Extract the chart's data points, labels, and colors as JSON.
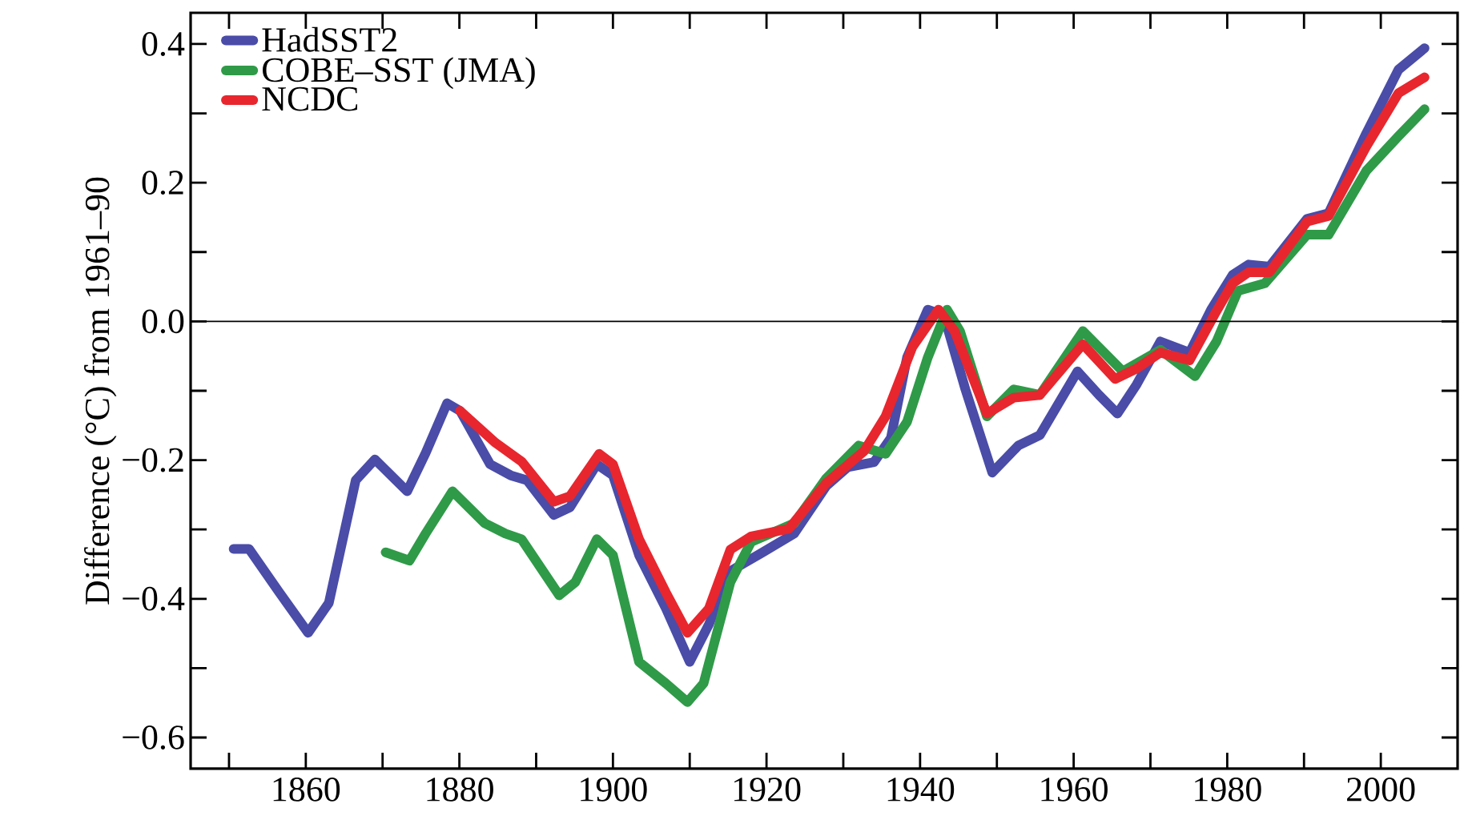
{
  "chart_data": {
    "type": "line",
    "ylabel": "Difference (°C) from 1961–90",
    "xlim": [
      1845,
      2010
    ],
    "ylim": [
      -0.645,
      0.445
    ],
    "xticks": [
      {
        "value": 1850,
        "label": null
      },
      1860,
      {
        "value": 1870,
        "label": null
      },
      1880,
      {
        "value": 1890,
        "label": null
      },
      1900,
      {
        "value": 1910,
        "label": null
      },
      1920,
      {
        "value": 1930,
        "label": null
      },
      1940,
      {
        "value": 1950,
        "label": null
      },
      1960,
      {
        "value": 1970,
        "label": null
      },
      1980,
      {
        "value": 1990,
        "label": null
      },
      2000
    ],
    "yticks": [
      {
        "value": -0.6,
        "label": "−0.6"
      },
      {
        "value": -0.5,
        "label": null
      },
      {
        "value": -0.4,
        "label": "−0.4"
      },
      {
        "value": -0.3,
        "label": null
      },
      {
        "value": -0.2,
        "label": "−0.2"
      },
      {
        "value": -0.1,
        "label": null
      },
      {
        "value": 0,
        "label": "0.0"
      },
      {
        "value": 0.1,
        "label": null
      },
      0.2,
      {
        "value": 0.3,
        "label": null
      },
      0.4
    ],
    "ref_lines": [
      {
        "axis": "y",
        "value": 0,
        "color": "#000000"
      }
    ],
    "legend": "top left",
    "grid": false,
    "marker": "none",
    "line_style": "solid",
    "series": [
      {
        "name": "HadSST2",
        "color": "#4a4ca8",
        "x": [
          1850.6,
          1852.6,
          1856.5,
          1860.3,
          1863,
          1866.5,
          1869,
          1873.2,
          1875.6,
          1878.4,
          1880.1,
          1884,
          1886.7,
          1888.8,
          1892.3,
          1894.4,
          1897.9,
          1900,
          1903.4,
          1906.9,
          1910,
          1912.5,
          1915.3,
          1919.5,
          1923.6,
          1927.8,
          1930.6,
          1934,
          1936.2,
          1938.3,
          1941,
          1943.1,
          1945.9,
          1949.4,
          1952.8,
          1955.6,
          1960.5,
          1963.3,
          1965.7,
          1968.2,
          1971.3,
          1975.1,
          1977.9,
          1980.7,
          1982.8,
          1985.5,
          1990.4,
          1993.2,
          1998.1,
          2002.3,
          2005.7
        ],
        "values": [
          -0.328,
          -0.328,
          -0.39,
          -0.449,
          -0.406,
          -0.229,
          -0.199,
          -0.245,
          -0.19,
          -0.118,
          -0.129,
          -0.206,
          -0.222,
          -0.229,
          -0.279,
          -0.268,
          -0.206,
          -0.222,
          -0.337,
          -0.414,
          -0.491,
          -0.437,
          -0.36,
          -0.333,
          -0.306,
          -0.237,
          -0.21,
          -0.203,
          -0.168,
          -0.052,
          0.017,
          0.009,
          -0.098,
          -0.218,
          -0.179,
          -0.164,
          -0.072,
          -0.106,
          -0.133,
          -0.091,
          -0.029,
          -0.045,
          0.017,
          0.067,
          0.082,
          0.079,
          0.148,
          0.156,
          0.271,
          0.363,
          0.394
        ]
      },
      {
        "name": "COBE–SST (JMA)",
        "color": "#2f9a48",
        "x": [
          1870.4,
          1873.5,
          1875.6,
          1879.1,
          1883.3,
          1886,
          1888.1,
          1893,
          1895.1,
          1897.9,
          1900,
          1903.4,
          1906.9,
          1909.7,
          1911.8,
          1915.3,
          1918,
          1923.6,
          1927.8,
          1932,
          1935.5,
          1938.3,
          1941,
          1943.5,
          1945.2,
          1948.7,
          1952.2,
          1955.6,
          1961.2,
          1966.4,
          1971.3,
          1975.8,
          1978.6,
          1981.4,
          1984.9,
          1990.4,
          1993.2,
          1998.1,
          2002.3,
          2005.7
        ],
        "values": [
          -0.333,
          -0.345,
          -0.306,
          -0.245,
          -0.291,
          -0.306,
          -0.314,
          -0.395,
          -0.376,
          -0.314,
          -0.337,
          -0.491,
          -0.522,
          -0.549,
          -0.522,
          -0.376,
          -0.318,
          -0.291,
          -0.226,
          -0.179,
          -0.191,
          -0.145,
          -0.052,
          0.017,
          -0.014,
          -0.137,
          -0.098,
          -0.106,
          -0.014,
          -0.072,
          -0.041,
          -0.079,
          -0.029,
          0.044,
          0.055,
          0.125,
          0.125,
          0.217,
          0.267,
          0.306
        ]
      },
      {
        "name": "NCDC",
        "color": "#e8262e",
        "x": [
          1880.1,
          1884.7,
          1888.1,
          1892.3,
          1894.4,
          1898.2,
          1900,
          1903.4,
          1906.9,
          1909.7,
          1912.5,
          1915.3,
          1918,
          1922.9,
          1927.8,
          1932.7,
          1935.5,
          1939,
          1942.4,
          1944.5,
          1948.7,
          1952.2,
          1955.6,
          1961.2,
          1965.4,
          1968.2,
          1971.3,
          1975.1,
          1978.3,
          1980.7,
          1982.8,
          1985.5,
          1990.4,
          1993.2,
          1998.1,
          2002.3,
          2005.7
        ],
        "values": [
          -0.129,
          -0.175,
          -0.202,
          -0.26,
          -0.252,
          -0.191,
          -0.206,
          -0.314,
          -0.391,
          -0.449,
          -0.414,
          -0.329,
          -0.31,
          -0.299,
          -0.233,
          -0.187,
          -0.137,
          -0.037,
          0.017,
          -0.014,
          -0.133,
          -0.11,
          -0.106,
          -0.033,
          -0.083,
          -0.068,
          -0.045,
          -0.056,
          0.009,
          0.055,
          0.071,
          0.071,
          0.144,
          0.152,
          0.252,
          0.329,
          0.352
        ]
      }
    ]
  }
}
